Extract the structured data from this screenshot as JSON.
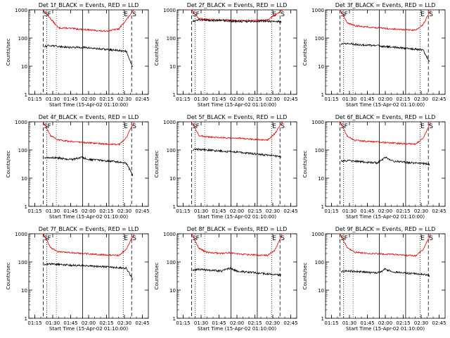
{
  "colors": {
    "events": "#000000",
    "lld": "#e00000",
    "axes": "#000000"
  },
  "chart_data": [
    {
      "type": "line",
      "title": "Det  1f_BLACK = Events, RED = LLD",
      "xlabel": "Start Time (15-Apr-02 01:10:00)",
      "ylabel": "Counts/sec",
      "yscale": "log",
      "ylim": [
        1,
        1000
      ],
      "yticks": [
        1,
        10,
        100,
        1000
      ],
      "ytick_labels": [
        "1",
        "10",
        "100",
        "1000"
      ],
      "xticks": [
        "01:15",
        "01:30",
        "01:45",
        "02:00",
        "02:15",
        "02:30",
        "02:45"
      ],
      "markers": [
        "S",
        "F",
        "E",
        "S"
      ],
      "series": [
        {
          "values": [
            1000,
            480,
            230,
            225,
            215,
            205,
            195,
            185,
            175,
            190,
            210,
            450,
            1000
          ]
        },
        {
          "values": [
            50,
            55,
            50,
            48,
            46,
            47,
            45,
            42,
            40,
            38,
            36,
            34,
            7
          ]
        }
      ]
    },
    {
      "type": "line",
      "title": "Det  2f_BLACK = Events, RED = LLD",
      "xlabel": "Start Time (15-Apr-02 01:10:00)",
      "ylabel": "Counts/sec",
      "yscale": "log",
      "ylim": [
        1,
        1000
      ],
      "yticks": [
        1,
        10,
        100,
        1000
      ],
      "ytick_labels": [
        "1",
        "10",
        "100",
        "1000"
      ],
      "xticks": [
        "01:15",
        "01:30",
        "01:45",
        "02:00",
        "02:15",
        "02:30",
        "02:45"
      ],
      "markers": [
        "S",
        "F",
        "E",
        "S"
      ],
      "series": [
        {
          "values": [
            1000,
            480,
            460,
            450,
            440,
            430,
            420,
            420,
            420,
            430,
            440,
            650,
            1000
          ]
        },
        {
          "values": [
            380,
            440,
            430,
            420,
            410,
            400,
            390,
            390,
            390,
            400,
            400,
            390,
            380
          ]
        }
      ]
    },
    {
      "type": "line",
      "title": "Det  3f_BLACK = Events, RED = LLD",
      "xlabel": "Start Time (15-Apr-02 01:10:00)",
      "ylabel": "Counts/sec",
      "yscale": "log",
      "ylim": [
        1,
        1000
      ],
      "yticks": [
        1,
        10,
        100,
        1000
      ],
      "ytick_labels": [
        "1",
        "10",
        "100",
        "1000"
      ],
      "xticks": [
        "01:15",
        "01:30",
        "01:45",
        "02:00",
        "02:15",
        "02:30",
        "02:45"
      ],
      "markers": [
        "S",
        "F",
        "E",
        "S"
      ],
      "series": [
        {
          "values": [
            1000,
            350,
            270,
            260,
            240,
            230,
            220,
            210,
            200,
            195,
            190,
            300,
            1000
          ]
        },
        {
          "values": [
            60,
            65,
            60,
            57,
            55,
            53,
            50,
            48,
            45,
            43,
            40,
            38,
            12
          ]
        }
      ]
    },
    {
      "type": "line",
      "title": "Det  4f_BLACK = Events, RED = LLD",
      "xlabel": "Start Time (15-Apr-02 01:10:00)",
      "ylabel": "Counts/sec",
      "yscale": "log",
      "ylim": [
        1,
        1000
      ],
      "yticks": [
        1,
        10,
        100,
        1000
      ],
      "ytick_labels": [
        "1",
        "10",
        "100",
        "1000"
      ],
      "xticks": [
        "01:15",
        "01:30",
        "01:45",
        "02:00",
        "02:15",
        "02:30",
        "02:45"
      ],
      "markers": [
        "S",
        "F",
        "E",
        "S"
      ],
      "series": [
        {
          "values": [
            1000,
            320,
            230,
            210,
            200,
            190,
            180,
            175,
            165,
            160,
            155,
            280,
            1000
          ]
        },
        {
          "values": [
            50,
            55,
            52,
            48,
            46,
            55,
            46,
            44,
            42,
            40,
            37,
            34,
            10
          ]
        }
      ]
    },
    {
      "type": "line",
      "title": "Det  5f_BLACK = Events, RED = LLD",
      "xlabel": "Start Time (15-Apr-02 01:10:00)",
      "ylabel": "Counts/sec",
      "yscale": "log",
      "ylim": [
        1,
        1000
      ],
      "yticks": [
        1,
        10,
        100,
        1000
      ],
      "ytick_labels": [
        "1",
        "10",
        "100",
        "1000"
      ],
      "xticks": [
        "01:15",
        "01:30",
        "01:45",
        "02:00",
        "02:15",
        "02:30",
        "02:45"
      ],
      "markers": [
        "S",
        "F",
        "E",
        "S"
      ],
      "series": [
        {
          "values": [
            1000,
            330,
            290,
            280,
            275,
            270,
            265,
            255,
            240,
            230,
            220,
            380,
            1000
          ]
        },
        {
          "values": [
            100,
            105,
            100,
            95,
            92,
            88,
            85,
            80,
            75,
            70,
            66,
            62,
            55
          ]
        }
      ]
    },
    {
      "type": "line",
      "title": "Det  6f_BLACK = Events, RED = LLD",
      "xlabel": "Start Time (15-Apr-02 01:10:00)",
      "ylabel": "Counts/sec",
      "yscale": "log",
      "ylim": [
        1,
        1000
      ],
      "yticks": [
        1,
        10,
        100,
        1000
      ],
      "ytick_labels": [
        "1",
        "10",
        "100",
        "1000"
      ],
      "xticks": [
        "01:15",
        "01:30",
        "01:45",
        "02:00",
        "02:15",
        "02:30",
        "02:45"
      ],
      "markers": [
        "S",
        "F",
        "E",
        "S"
      ],
      "series": [
        {
          "values": [
            1000,
            300,
            220,
            210,
            200,
            195,
            185,
            180,
            170,
            165,
            160,
            260,
            1000
          ]
        },
        {
          "values": [
            40,
            42,
            40,
            38,
            36,
            35,
            55,
            40,
            38,
            36,
            34,
            33,
            30
          ]
        }
      ]
    },
    {
      "type": "line",
      "title": "Det  7f_BLACK = Events, RED = LLD",
      "xlabel": "Start Time (15-Apr-02 01:10:00)",
      "ylabel": "Counts/sec",
      "yscale": "log",
      "ylim": [
        1,
        1000
      ],
      "yticks": [
        1,
        10,
        100,
        1000
      ],
      "ytick_labels": [
        "1",
        "10",
        "100",
        "1000"
      ],
      "xticks": [
        "01:15",
        "01:30",
        "01:45",
        "02:00",
        "02:15",
        "02:30",
        "02:45"
      ],
      "markers": [
        "S",
        "F",
        "E",
        "S"
      ],
      "series": [
        {
          "values": [
            1000,
            320,
            230,
            220,
            210,
            200,
            195,
            185,
            180,
            175,
            170,
            290,
            1000
          ]
        },
        {
          "values": [
            80,
            85,
            82,
            78,
            76,
            74,
            72,
            70,
            68,
            66,
            63,
            60,
            20
          ]
        }
      ]
    },
    {
      "type": "line",
      "title": "Det  8f_BLACK = Events, RED = LLD",
      "xlabel": "Start Time (15-Apr-02 01:10:00)",
      "ylabel": "Counts/sec",
      "yscale": "log",
      "ylim": [
        1,
        1000
      ],
      "yticks": [
        1,
        10,
        100,
        1000
      ],
      "ytick_labels": [
        "1",
        "10",
        "100",
        "1000"
      ],
      "xticks": [
        "01:15",
        "01:30",
        "01:45",
        "02:00",
        "02:15",
        "02:30",
        "02:45"
      ],
      "markers": [
        "S",
        "F",
        "E",
        "S"
      ],
      "series": [
        {
          "values": [
            1000,
            300,
            220,
            210,
            200,
            215,
            195,
            185,
            180,
            175,
            170,
            260,
            1000
          ]
        },
        {
          "values": [
            50,
            55,
            52,
            50,
            48,
            60,
            48,
            45,
            43,
            40,
            38,
            36,
            34
          ]
        }
      ]
    },
    {
      "type": "line",
      "title": "Det  9f_BLACK = Events, RED = LLD",
      "xlabel": "Start Time (15-Apr-02 01:10:00)",
      "ylabel": "Counts/sec",
      "yscale": "log",
      "ylim": [
        1,
        1000
      ],
      "yticks": [
        1,
        10,
        100,
        1000
      ],
      "ytick_labels": [
        "1",
        "10",
        "100",
        "1000"
      ],
      "xticks": [
        "01:15",
        "01:30",
        "01:45",
        "02:00",
        "02:15",
        "02:30",
        "02:45"
      ],
      "markers": [
        "S",
        "F",
        "E",
        "S"
      ],
      "series": [
        {
          "values": [
            1000,
            310,
            220,
            210,
            200,
            195,
            190,
            185,
            175,
            170,
            165,
            270,
            1000
          ]
        },
        {
          "values": [
            45,
            48,
            46,
            44,
            42,
            41,
            55,
            44,
            42,
            40,
            38,
            36,
            32
          ]
        }
      ]
    }
  ]
}
